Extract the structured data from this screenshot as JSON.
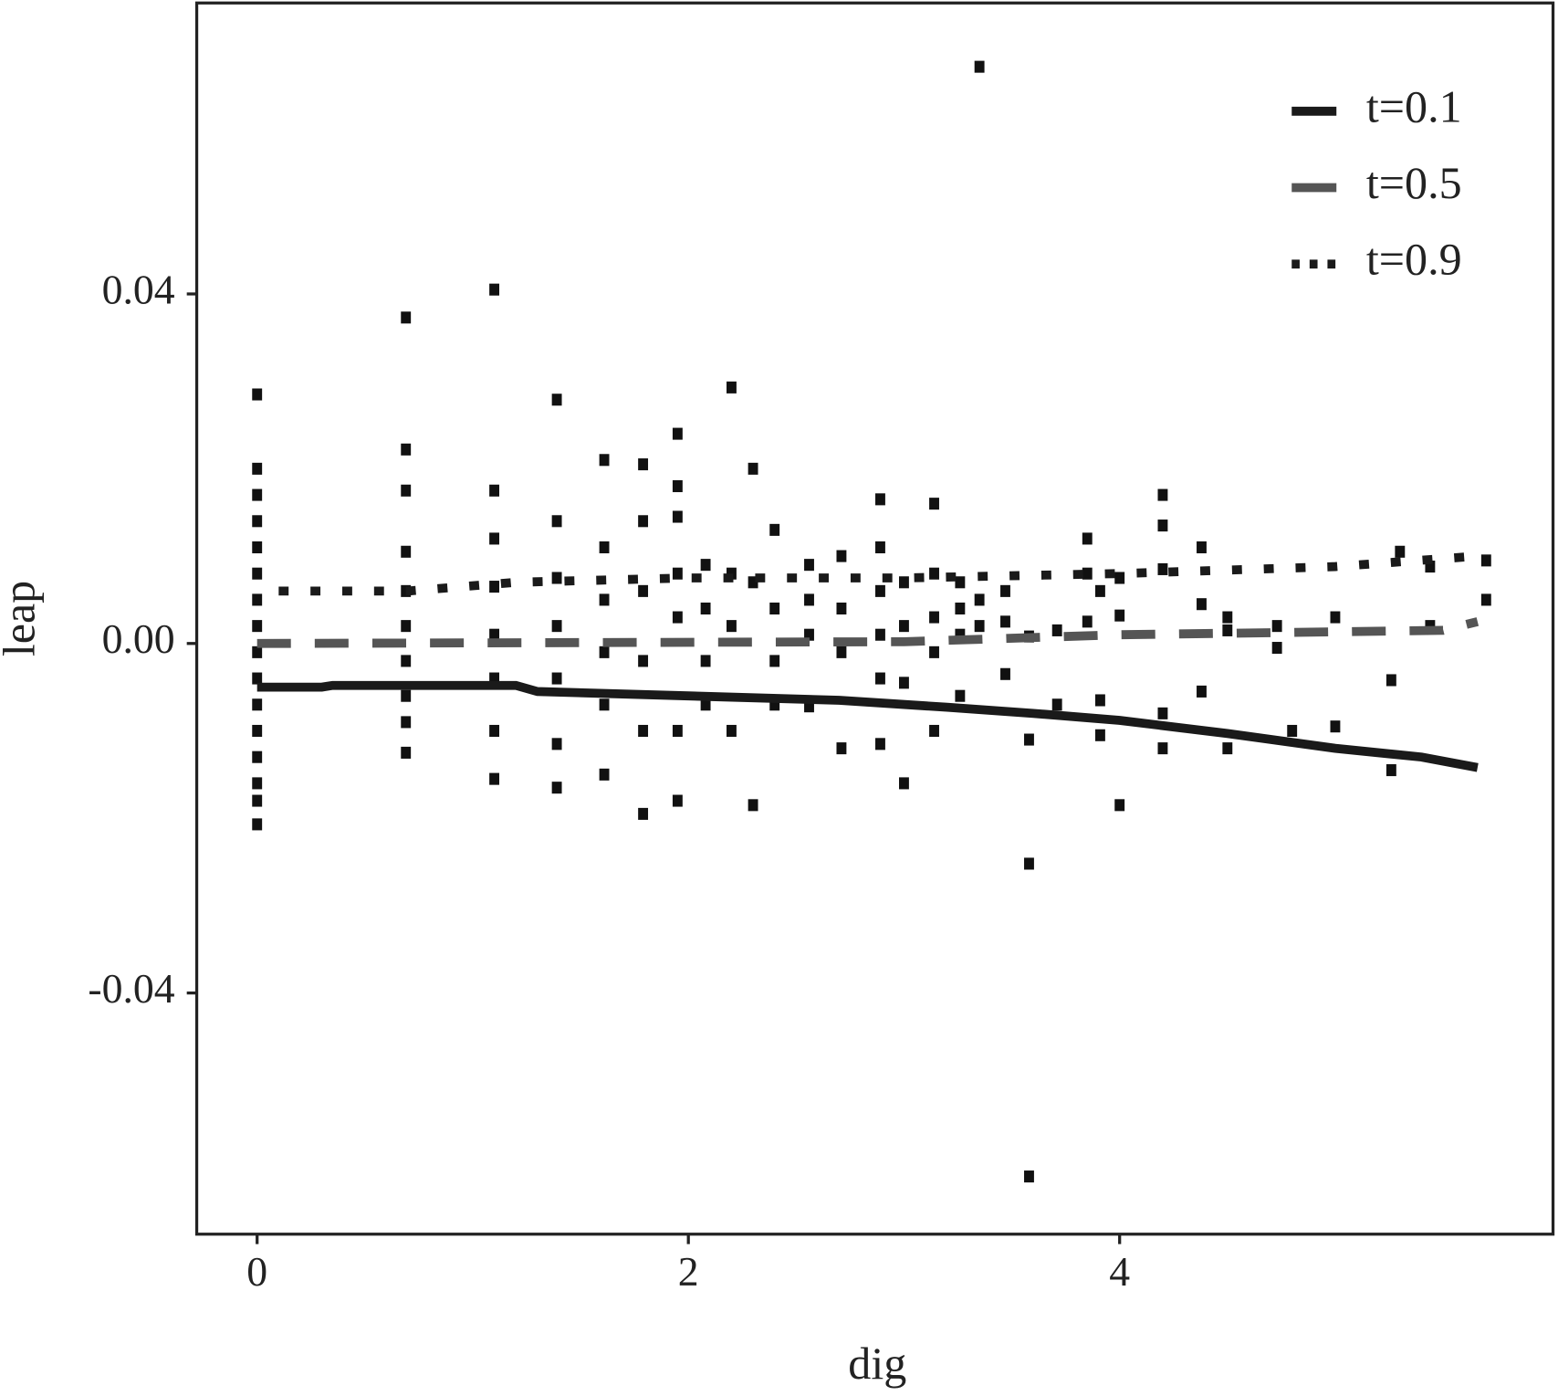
{
  "chart_data": {
    "type": "scatter",
    "xlabel": "dig",
    "ylabel": "leap",
    "xlim": [
      -0.28,
      6.01
    ],
    "ylim": [
      -0.0676,
      0.0733
    ],
    "xticks": [
      0,
      2,
      4
    ],
    "yticks": [
      {
        "value": -0.04,
        "label": "-0.04"
      },
      {
        "value": 0,
        "label": "0.00"
      },
      {
        "value": 0.04,
        "label": "0.04"
      }
    ],
    "legend_position": "upper right",
    "point_color": "#111111",
    "points": {
      "x": [
        0,
        0,
        0,
        0,
        0,
        0,
        0,
        0,
        0,
        0,
        0,
        0,
        0,
        0,
        0,
        0,
        0.69,
        0.69,
        0.69,
        0.69,
        0.69,
        0.69,
        0.69,
        0.69,
        0.69,
        0.69,
        1.1,
        1.1,
        1.1,
        1.1,
        1.1,
        1.1,
        1.1,
        1.1,
        1.39,
        1.39,
        1.39,
        1.39,
        1.39,
        1.39,
        1.39,
        1.61,
        1.61,
        1.61,
        1.61,
        1.61,
        1.61,
        1.79,
        1.79,
        1.79,
        1.79,
        1.79,
        1.79,
        1.95,
        1.95,
        1.95,
        1.95,
        1.95,
        1.95,
        1.95,
        2.08,
        2.08,
        2.08,
        2.08,
        2.2,
        2.2,
        2.2,
        2.2,
        2.3,
        2.3,
        2.3,
        2.4,
        2.4,
        2.4,
        2.4,
        2.56,
        2.56,
        2.56,
        2.56,
        2.71,
        2.71,
        2.71,
        2.71,
        2.89,
        2.89,
        2.89,
        2.89,
        2.89,
        2.89,
        3.0,
        3.0,
        3.0,
        3.0,
        3.14,
        3.14,
        3.14,
        3.14,
        3.14,
        3.26,
        3.26,
        3.26,
        3.26,
        3.35,
        3.35,
        3.35,
        3.47,
        3.47,
        3.47,
        3.58,
        3.58,
        3.58,
        3.58,
        3.71,
        3.71,
        3.85,
        3.85,
        3.85,
        3.91,
        3.91,
        3.91,
        4.0,
        4.0,
        4.0,
        4.2,
        4.2,
        4.2,
        4.2,
        4.2,
        4.38,
        4.38,
        4.38,
        4.5,
        4.5,
        4.5,
        4.73,
        4.73,
        4.8,
        5.0,
        5.0,
        5.26,
        5.26,
        5.3,
        5.44,
        5.44,
        5.7,
        5.7
      ],
      "y": [
        0.0285,
        0.02,
        0.017,
        0.014,
        0.011,
        0.008,
        0.005,
        0.002,
        -0.001,
        -0.004,
        -0.007,
        -0.01,
        -0.013,
        -0.016,
        -0.018,
        -0.0207,
        0.0373,
        0.0222,
        0.0175,
        0.0105,
        0.006,
        0.002,
        -0.002,
        -0.006,
        -0.009,
        -0.0125,
        0.0405,
        0.0175,
        0.012,
        0.0065,
        0.001,
        -0.004,
        -0.01,
        -0.0155,
        0.0279,
        0.014,
        0.0075,
        0.002,
        -0.004,
        -0.0115,
        -0.0165,
        0.021,
        0.011,
        0.005,
        -0.001,
        -0.007,
        -0.015,
        0.0205,
        0.014,
        0.006,
        -0.002,
        -0.01,
        -0.0195,
        0.024,
        0.018,
        0.0145,
        0.008,
        0.003,
        -0.01,
        -0.018,
        0.009,
        0.004,
        -0.002,
        -0.007,
        0.0293,
        0.008,
        0.002,
        -0.01,
        0.02,
        0.007,
        -0.0185,
        0.013,
        0.004,
        -0.002,
        -0.007,
        0.009,
        0.005,
        0.001,
        -0.0072,
        0.01,
        0.004,
        -0.001,
        -0.012,
        0.0165,
        0.011,
        0.006,
        0.001,
        -0.004,
        -0.0115,
        0.007,
        0.002,
        -0.0045,
        -0.016,
        0.016,
        0.008,
        0.003,
        -0.001,
        -0.01,
        0.007,
        0.004,
        0.001,
        -0.006,
        0.066,
        0.005,
        0.002,
        0.006,
        0.0025,
        -0.0035,
        0.0008,
        -0.011,
        -0.0252,
        -0.061,
        0.0015,
        -0.007,
        0.012,
        0.008,
        0.0025,
        0.006,
        -0.0065,
        -0.0105,
        0.0075,
        0.0032,
        -0.0185,
        0.017,
        0.0135,
        0.0085,
        -0.008,
        -0.012,
        0.011,
        0.0045,
        -0.0055,
        0.003,
        0.0015,
        -0.012,
        0.002,
        -0.0005,
        -0.01,
        0.003,
        -0.0095,
        -0.0042,
        -0.0145,
        0.0105,
        0.002,
        0.0088,
        0.0095,
        0.005
      ]
    },
    "lines": [
      {
        "name": "t=0.1",
        "color": "#1a1a1a",
        "linestyle": "solid",
        "x": [
          0,
          0.3,
          0.35,
          1.2,
          1.3,
          2.0,
          2.7,
          3.2,
          3.6,
          4.0,
          4.5,
          5.0,
          5.4,
          5.66
        ],
        "y": [
          -0.005,
          -0.005,
          -0.0048,
          -0.0048,
          -0.0055,
          -0.006,
          -0.0065,
          -0.0073,
          -0.008,
          -0.0088,
          -0.0103,
          -0.012,
          -0.013,
          -0.0142
        ]
      },
      {
        "name": "t=0.5",
        "color": "#555555",
        "linestyle": "dashed",
        "x": [
          0,
          3,
          4,
          5.5,
          5.66
        ],
        "y": [
          0,
          0.0002,
          0.001,
          0.0015,
          0.0025
        ]
      },
      {
        "name": "t=0.9",
        "color": "#1a1a1a",
        "linestyle": "dotted",
        "x": [
          0.1,
          0.7,
          1.2,
          2,
          3,
          4,
          5,
          5.66
        ],
        "y": [
          0.006,
          0.006,
          0.007,
          0.0075,
          0.0075,
          0.008,
          0.0088,
          0.01
        ]
      }
    ]
  }
}
